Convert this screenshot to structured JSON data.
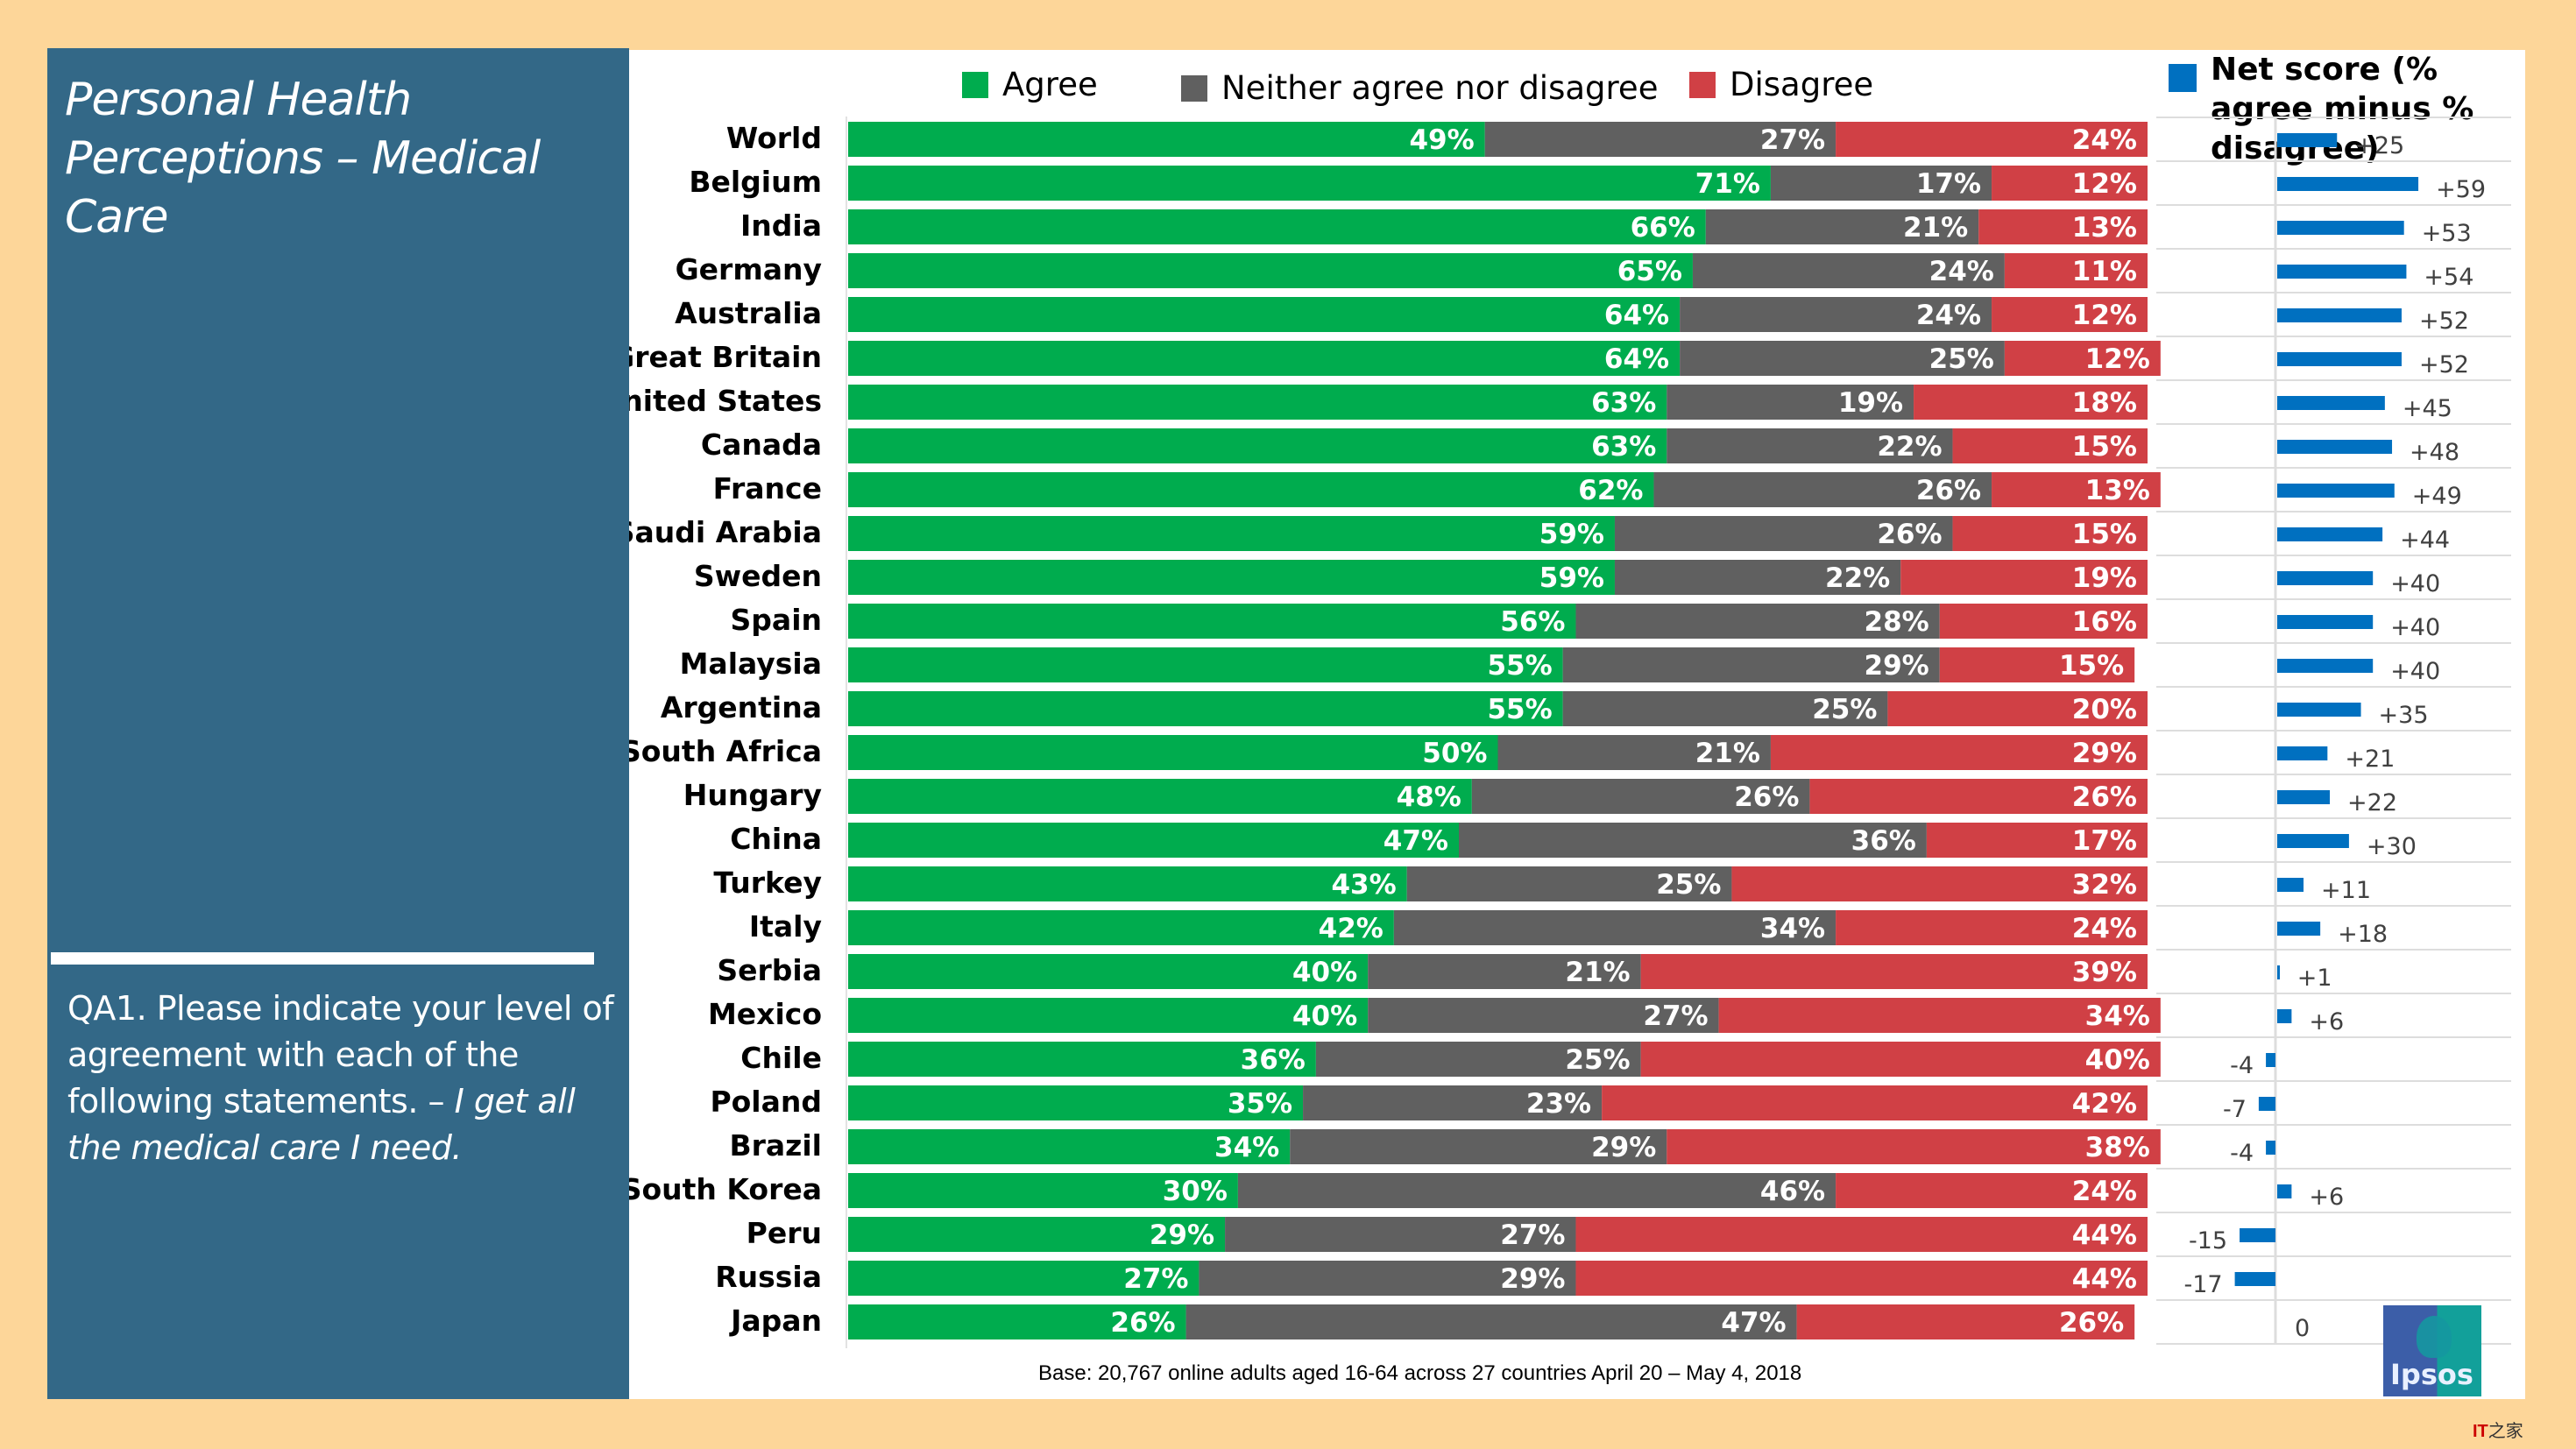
{
  "slide": {
    "title": "Personal Health Perceptions – Medical Care",
    "question_prefix": "QA1. Please indicate your level of agreement with each of the following statements. –",
    "question_statement": "I get all the medical care I need.",
    "footer": "Base: 20,767 online adults aged 16-64 across 27 countries  April 20 – May 4, 2018",
    "logo_text": "Ipsos",
    "watermark_brand": "IT",
    "watermark_rest": "之家"
  },
  "colors": {
    "agree": "#00ac4e",
    "neither": "#606060",
    "disagree": "#d04045",
    "net": "#0070c0",
    "panel": "#336887",
    "background": "#fdd699"
  },
  "chart_data": [
    {
      "type": "bar",
      "orientation": "horizontal",
      "stacked": true,
      "title": "Personal Health Perceptions – Medical Care",
      "legend": [
        "Agree",
        "Neither agree nor disagree",
        "Disagree"
      ],
      "legend_position": "top",
      "unit": "%",
      "xlim": [
        0,
        100
      ],
      "categories": [
        "World",
        "Belgium",
        "India",
        "Germany",
        "Australia",
        "Great Britain",
        "United States",
        "Canada",
        "France",
        "Saudi Arabia",
        "Sweden",
        "Spain",
        "Malaysia",
        "Argentina",
        "South Africa",
        "Hungary",
        "China",
        "Turkey",
        "Italy",
        "Serbia",
        "Mexico",
        "Chile",
        "Poland",
        "Brazil",
        "South Korea",
        "Peru",
        "Russia",
        "Japan"
      ],
      "series": [
        {
          "name": "Agree",
          "values": [
            49,
            71,
            66,
            65,
            64,
            64,
            63,
            63,
            62,
            59,
            59,
            56,
            55,
            55,
            50,
            48,
            47,
            43,
            42,
            40,
            40,
            36,
            35,
            34,
            30,
            29,
            27,
            26
          ]
        },
        {
          "name": "Neither agree nor disagree",
          "values": [
            27,
            17,
            21,
            24,
            24,
            25,
            19,
            22,
            26,
            26,
            22,
            28,
            29,
            25,
            21,
            26,
            36,
            25,
            34,
            21,
            27,
            25,
            23,
            29,
            46,
            27,
            29,
            47
          ]
        },
        {
          "name": "Disagree",
          "values": [
            24,
            12,
            13,
            11,
            12,
            12,
            18,
            15,
            13,
            15,
            19,
            16,
            15,
            20,
            29,
            26,
            17,
            32,
            24,
            39,
            34,
            40,
            42,
            38,
            24,
            44,
            44,
            26
          ]
        }
      ]
    },
    {
      "type": "bar",
      "orientation": "horizontal",
      "title": "Net score (% agree minus % disagree)",
      "categories": [
        "World",
        "Belgium",
        "India",
        "Germany",
        "Australia",
        "Great Britain",
        "United States",
        "Canada",
        "France",
        "Saudi Arabia",
        "Sweden",
        "Spain",
        "Malaysia",
        "Argentina",
        "South Africa",
        "Hungary",
        "China",
        "Turkey",
        "Italy",
        "Serbia",
        "Mexico",
        "Chile",
        "Poland",
        "Brazil",
        "South Korea",
        "Peru",
        "Russia",
        "Japan"
      ],
      "values": [
        25,
        59,
        53,
        54,
        52,
        52,
        45,
        48,
        49,
        44,
        40,
        40,
        40,
        35,
        21,
        22,
        30,
        11,
        18,
        1,
        6,
        -4,
        -7,
        -4,
        6,
        -15,
        -17,
        0
      ],
      "labels": [
        "+25",
        "+59",
        "+53",
        "+54",
        "+52",
        "+52",
        "+45",
        "+48",
        "+49",
        "+44",
        "+40",
        "+40",
        "+40",
        "+35",
        "+21",
        "+22",
        "+30",
        "+11",
        "+18",
        "+1",
        "+6",
        "-4",
        "-7",
        "-4",
        "+6",
        "-15",
        "-17",
        "0"
      ],
      "grid": true
    }
  ]
}
